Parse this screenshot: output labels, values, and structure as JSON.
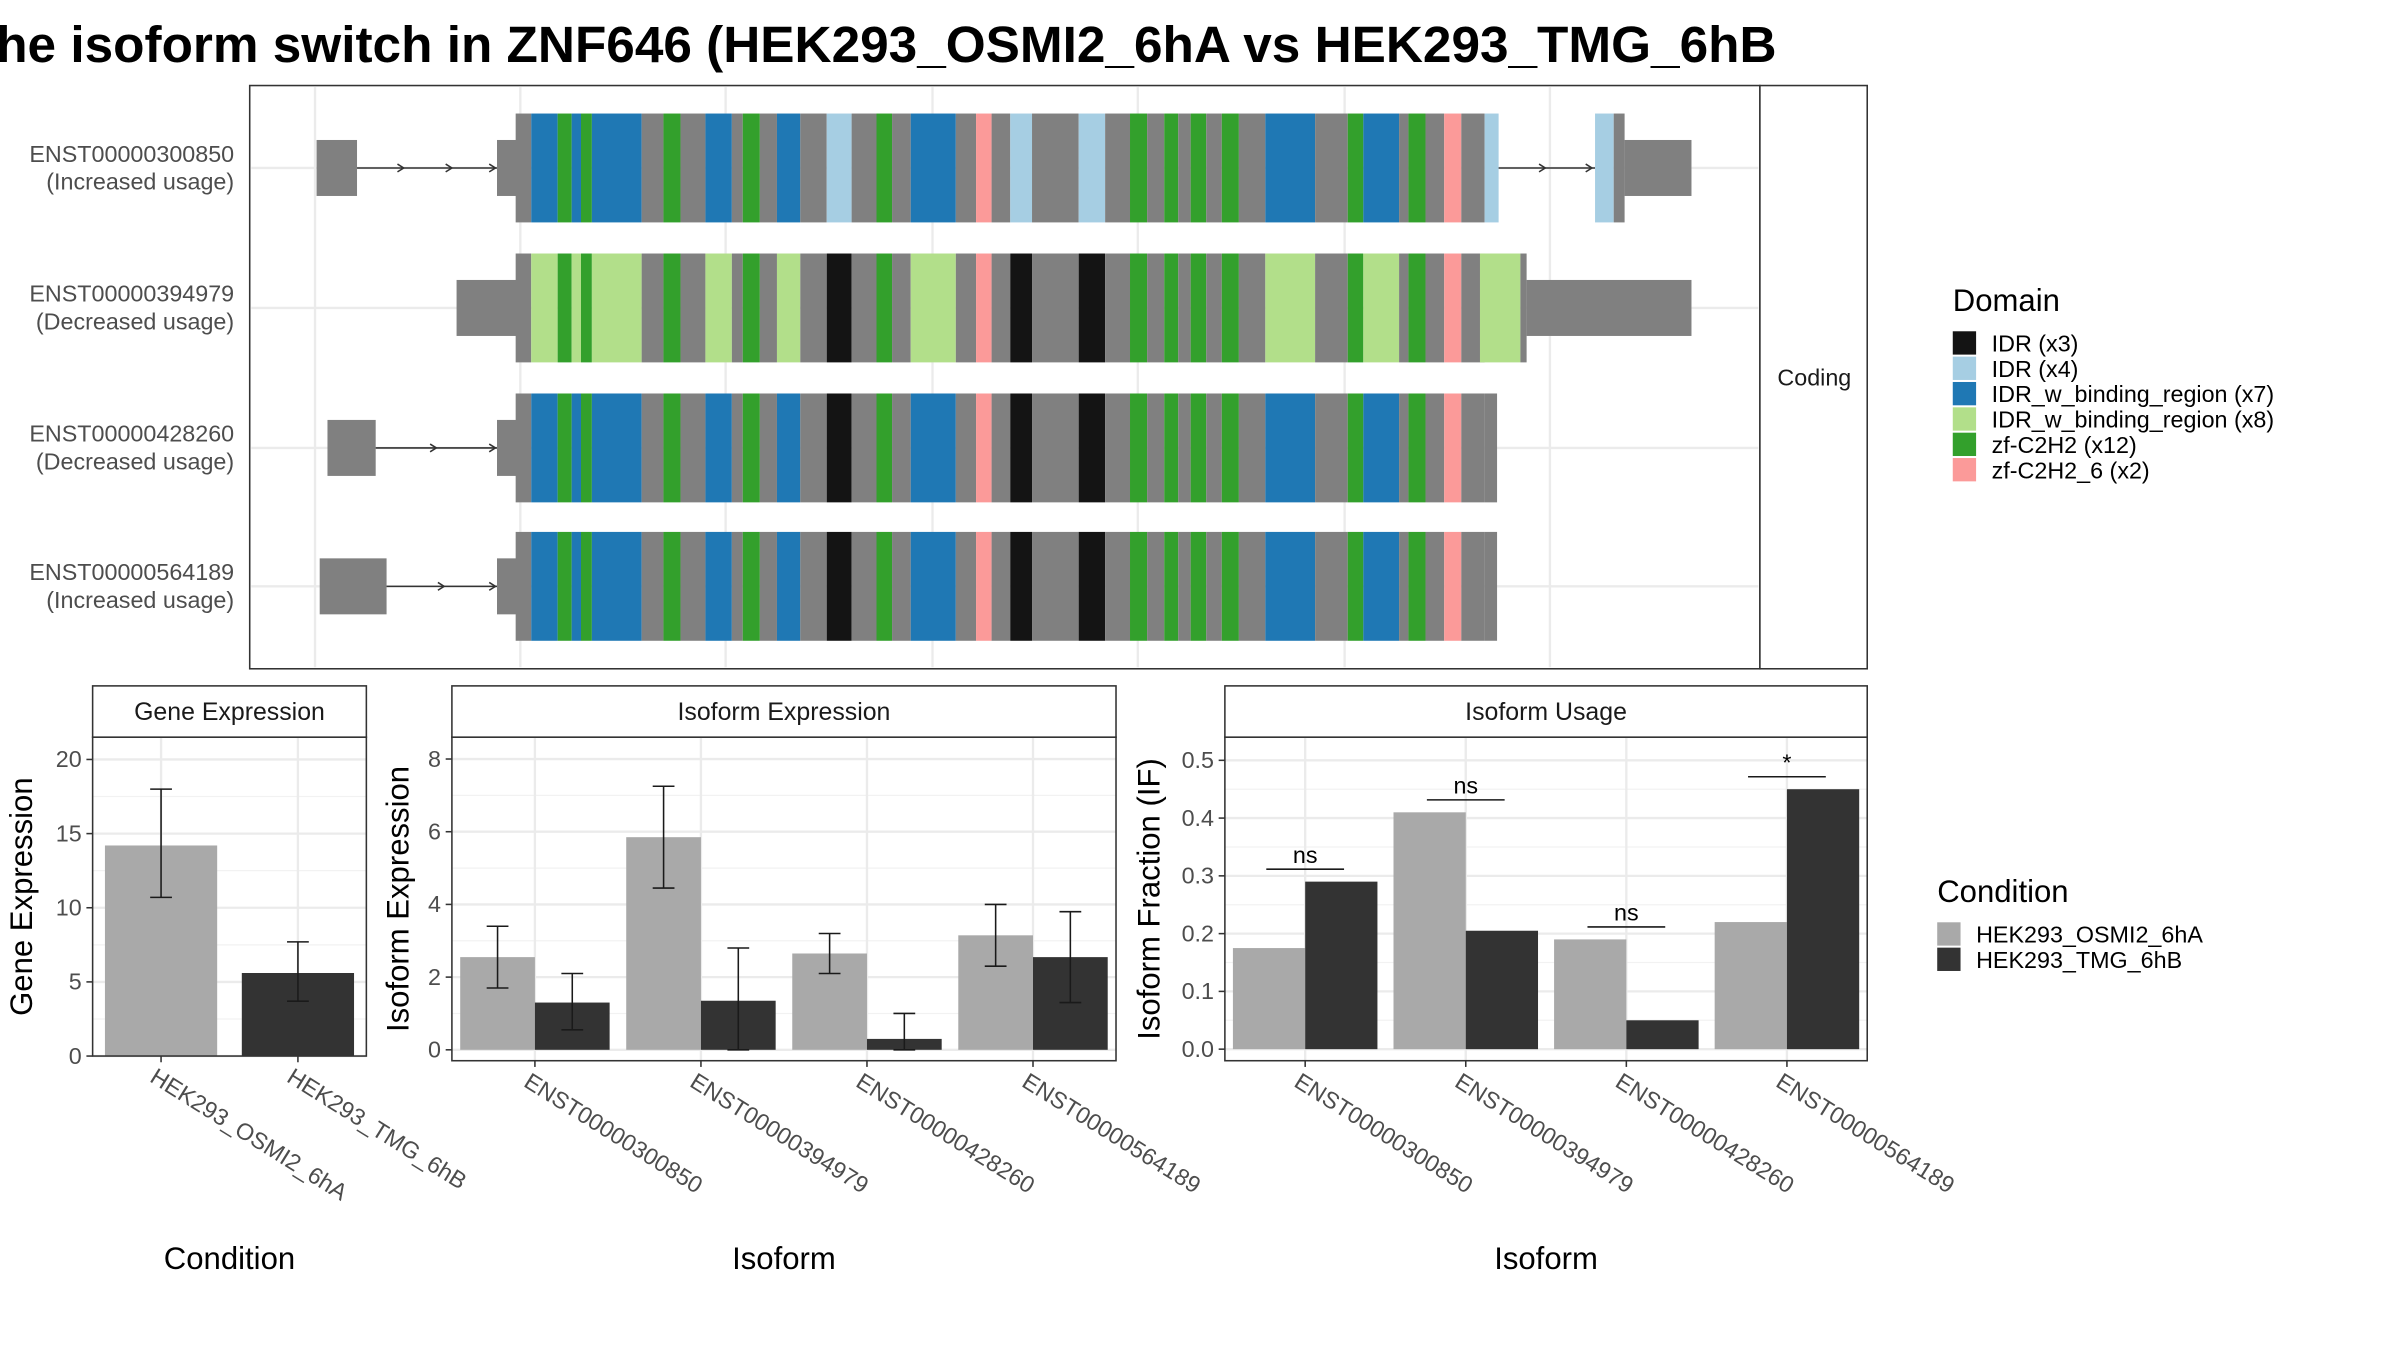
{
  "title": "he isoform switch in ZNF646 (HEK293_OSMI2_6hA vs HEK293_TMG_6hB",
  "domain_legend": {
    "title": "Domain",
    "items": [
      {
        "label": "IDR (x3)",
        "color": "#141414"
      },
      {
        "label": "IDR (x4)",
        "color": "#a6cee3"
      },
      {
        "label": "IDR_w_binding_region (x7)",
        "color": "#1f78b4"
      },
      {
        "label": "IDR_w_binding_region (x8)",
        "color": "#b2df8a"
      },
      {
        "label": "zf-C2H2 (x12)",
        "color": "#33a02c"
      },
      {
        "label": "zf-C2H2_6 (x2)",
        "color": "#fb9a99"
      }
    ]
  },
  "condition_legend": {
    "title": "Condition",
    "items": [
      {
        "label": "HEK293_OSMI2_6hA",
        "color": "#a9a9a9"
      },
      {
        "label": "HEK293_TMG_6hB",
        "color": "#333333"
      }
    ]
  },
  "isoform_panel": {
    "strip_label": "Coding",
    "transcripts": [
      {
        "id": "ENST00000300850",
        "usage": "(Increased usage)"
      },
      {
        "id": "ENST00000394979",
        "usage": "(Decreased usage)"
      },
      {
        "id": "ENST00000428260",
        "usage": "(Decreased usage)"
      },
      {
        "id": "ENST00000564189",
        "usage": "(Increased usage)"
      }
    ]
  },
  "chart_data": [
    {
      "type": "bar",
      "title": "Gene Expression",
      "xlabel": "Condition",
      "ylabel": "Gene Expression",
      "categories": [
        "HEK293_OSMI2_6hA",
        "HEK293_TMG_6hB"
      ],
      "values": [
        14.2,
        5.6
      ],
      "error_low": [
        10.7,
        3.7
      ],
      "error_high": [
        18.0,
        7.7
      ],
      "ylim": [
        0,
        21.5
      ],
      "yticks": [
        0,
        5,
        10,
        15,
        20
      ]
    },
    {
      "type": "bar",
      "title": "Isoform Expression",
      "xlabel": "Isoform",
      "ylabel": "Isoform Expression",
      "categories": [
        "ENST00000300850",
        "ENST00000394979",
        "ENST00000428260",
        "ENST00000564189"
      ],
      "series": [
        {
          "name": "HEK293_OSMI2_6hA",
          "values": [
            2.55,
            5.85,
            2.65,
            3.15
          ],
          "error_low": [
            1.7,
            4.45,
            2.1,
            2.3
          ],
          "error_high": [
            3.4,
            7.25,
            3.2,
            4.0
          ]
        },
        {
          "name": "HEK293_TMG_6hB",
          "values": [
            1.3,
            1.35,
            0.3,
            2.55
          ],
          "error_low": [
            0.55,
            0.0,
            0.0,
            1.3
          ],
          "error_high": [
            2.1,
            2.8,
            1.0,
            3.8
          ]
        }
      ],
      "ylim": [
        -0.3,
        8.6
      ],
      "yticks": [
        0,
        2,
        4,
        6,
        8
      ]
    },
    {
      "type": "bar",
      "title": "Isoform Usage",
      "xlabel": "Isoform",
      "ylabel": "Isoform Fraction (IF)",
      "categories": [
        "ENST00000300850",
        "ENST00000394979",
        "ENST00000428260",
        "ENST00000564189"
      ],
      "series": [
        {
          "name": "HEK293_OSMI2_6hA",
          "values": [
            0.175,
            0.41,
            0.19,
            0.22
          ]
        },
        {
          "name": "HEK293_TMG_6hB",
          "values": [
            0.29,
            0.205,
            0.05,
            0.45
          ]
        }
      ],
      "significance": [
        "ns",
        "ns",
        "ns",
        "*"
      ],
      "ylim": [
        -0.02,
        0.54
      ],
      "yticks": [
        0.0,
        0.1,
        0.2,
        0.3,
        0.4,
        0.5
      ]
    }
  ]
}
